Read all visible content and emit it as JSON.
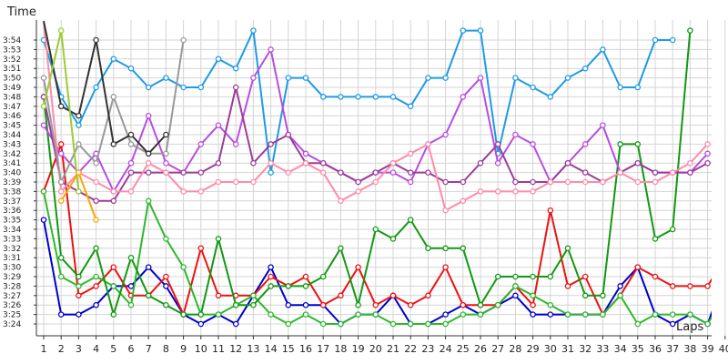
{
  "chart_data": {
    "type": "line",
    "ylabel": "Time",
    "xlabel": "Laps",
    "x": [
      1,
      2,
      3,
      4,
      5,
      6,
      7,
      8,
      9,
      10,
      11,
      12,
      13,
      14,
      15,
      16,
      17,
      18,
      19,
      20,
      21,
      22,
      23,
      24,
      25,
      26,
      27,
      28,
      29,
      30,
      31,
      32,
      33,
      34,
      35,
      36,
      37,
      38,
      39,
      40
    ],
    "y_tick_labels": [
      "3:24",
      "3:25",
      "3:26",
      "3:27",
      "3:28",
      "3:29",
      "3:30",
      "3:31",
      "3:32",
      "3:33",
      "3:34",
      "3:35",
      "3:36",
      "3:37",
      "3:38",
      "3:39",
      "3:40",
      "3:41",
      "3:42",
      "3:43",
      "3:44",
      "3:45",
      "3:46",
      "3:47",
      "3:48",
      "3:49",
      "3:50",
      "3:51",
      "3:52",
      "3:53",
      "3:54"
    ],
    "ylim": [
      203.5,
      235.5
    ],
    "grid": true,
    "series": [
      {
        "color": "#0000cc",
        "values": [
          215,
          205,
          205,
          206,
          208,
          208,
          210,
          208,
          205,
          204,
          205,
          204,
          207,
          210,
          206,
          206,
          206,
          204,
          205,
          205,
          207,
          204,
          204,
          205,
          206,
          205,
          206,
          207,
          205,
          205,
          205,
          205,
          205,
          208,
          210,
          205,
          204,
          205,
          204,
          209
        ]
      },
      {
        "color": "#ee1111",
        "values": [
          218,
          223,
          207,
          208,
          210,
          207,
          207,
          209,
          205,
          212,
          207,
          207,
          207,
          209,
          208,
          209,
          206,
          207,
          210,
          206,
          207,
          206,
          207,
          210,
          206,
          206,
          206,
          208,
          206,
          216,
          208,
          209,
          205,
          207,
          210,
          209,
          208,
          208,
          208,
          211
        ]
      },
      {
        "color": "#2db82d",
        "values": [
          218,
          209,
          208,
          209,
          208,
          206,
          217,
          213,
          210,
          205,
          205,
          206,
          207,
          205,
          204,
          205,
          204,
          204,
          205,
          205,
          204,
          204,
          204,
          204,
          205,
          205,
          206,
          208,
          207,
          206,
          205,
          205,
          205,
          207,
          204,
          205,
          205,
          205,
          204,
          207
        ]
      },
      {
        "color": "#119911",
        "values": [
          228,
          211,
          209,
          212,
          205,
          211,
          207,
          206,
          205,
          205,
          213,
          206,
          206,
          208,
          208,
          208,
          209,
          212,
          206,
          214,
          213,
          215,
          212,
          212,
          212,
          206,
          209,
          209,
          209,
          209,
          212,
          207,
          207,
          223,
          223,
          213,
          214,
          235,
          null,
          null
        ]
      },
      {
        "color": "#1e9be6",
        "values": [
          234,
          228,
          225,
          229,
          232,
          231,
          229,
          230,
          229,
          229,
          232,
          231,
          235,
          220,
          230,
          230,
          228,
          228,
          228,
          228,
          228,
          227,
          230,
          230,
          235,
          235,
          222,
          230,
          229,
          228,
          230,
          231,
          233,
          229,
          229,
          234,
          234,
          null,
          null,
          null
        ]
      },
      {
        "color": "#b84de0",
        "values": [
          225,
          222,
          220,
          222,
          218,
          221,
          226,
          221,
          220,
          223,
          225,
          223,
          230,
          233,
          224,
          222,
          221,
          220,
          219,
          220,
          220,
          219,
          223,
          224,
          228,
          230,
          221,
          224,
          223,
          219,
          221,
          223,
          225,
          220,
          221,
          220,
          220,
          220,
          222,
          null
        ]
      },
      {
        "color": "#9b3c9b",
        "values": [
          228,
          219,
          218,
          217,
          217,
          220,
          220,
          220,
          220,
          220,
          221,
          229,
          221,
          223,
          224,
          221,
          221,
          220,
          219,
          220,
          221,
          220,
          220,
          219,
          219,
          221,
          223,
          219,
          219,
          219,
          221,
          220,
          219,
          220,
          221,
          220,
          220,
          220,
          221,
          null
        ]
      },
      {
        "color": "#ff8aa8",
        "values": [
          236,
          218,
          220,
          219,
          218,
          218,
          221,
          220,
          218,
          218,
          219,
          219,
          219,
          221,
          220,
          221,
          220,
          217,
          218,
          219,
          221,
          222,
          223,
          216,
          217,
          218,
          218,
          218,
          218,
          219,
          219,
          219,
          219,
          220,
          219,
          219,
          220,
          221,
          223,
          null
        ]
      },
      {
        "color": "#999999",
        "values": [
          230,
          219,
          223,
          221,
          228,
          223,
          222,
          222,
          234,
          null,
          null,
          null,
          null,
          null,
          null,
          null,
          null,
          null,
          null,
          null,
          null,
          null,
          null,
          null,
          null,
          null,
          null,
          null,
          null,
          null,
          null,
          null,
          null,
          null,
          null,
          null,
          null,
          null,
          null,
          null
        ]
      },
      {
        "color": "#333333",
        "values": [
          236,
          227,
          226,
          234,
          223,
          224,
          222,
          224,
          null,
          null,
          null,
          null,
          null,
          null,
          null,
          null,
          null,
          null,
          null,
          null,
          null,
          null,
          null,
          null,
          null,
          null,
          null,
          null,
          null,
          null,
          null,
          null,
          null,
          null,
          null,
          null,
          null,
          null,
          null,
          null
        ]
      },
      {
        "color": "#9acd32",
        "values": [
          227,
          235,
          218,
          null,
          null,
          null,
          null,
          null,
          null,
          null,
          null,
          null,
          null,
          null,
          null,
          null,
          null,
          null,
          null,
          null,
          null,
          null,
          null,
          null,
          null,
          null,
          null,
          null,
          null,
          null,
          null,
          null,
          null,
          null,
          null,
          null,
          null,
          null,
          null,
          null
        ]
      },
      {
        "color": "#ffa500",
        "values": [
          null,
          217,
          220,
          215,
          null,
          null,
          null,
          null,
          null,
          null,
          null,
          null,
          null,
          null,
          null,
          null,
          null,
          null,
          null,
          null,
          null,
          null,
          null,
          null,
          null,
          null,
          null,
          null,
          null,
          null,
          null,
          null,
          null,
          null,
          null,
          null,
          null,
          null,
          null,
          null
        ]
      }
    ]
  }
}
